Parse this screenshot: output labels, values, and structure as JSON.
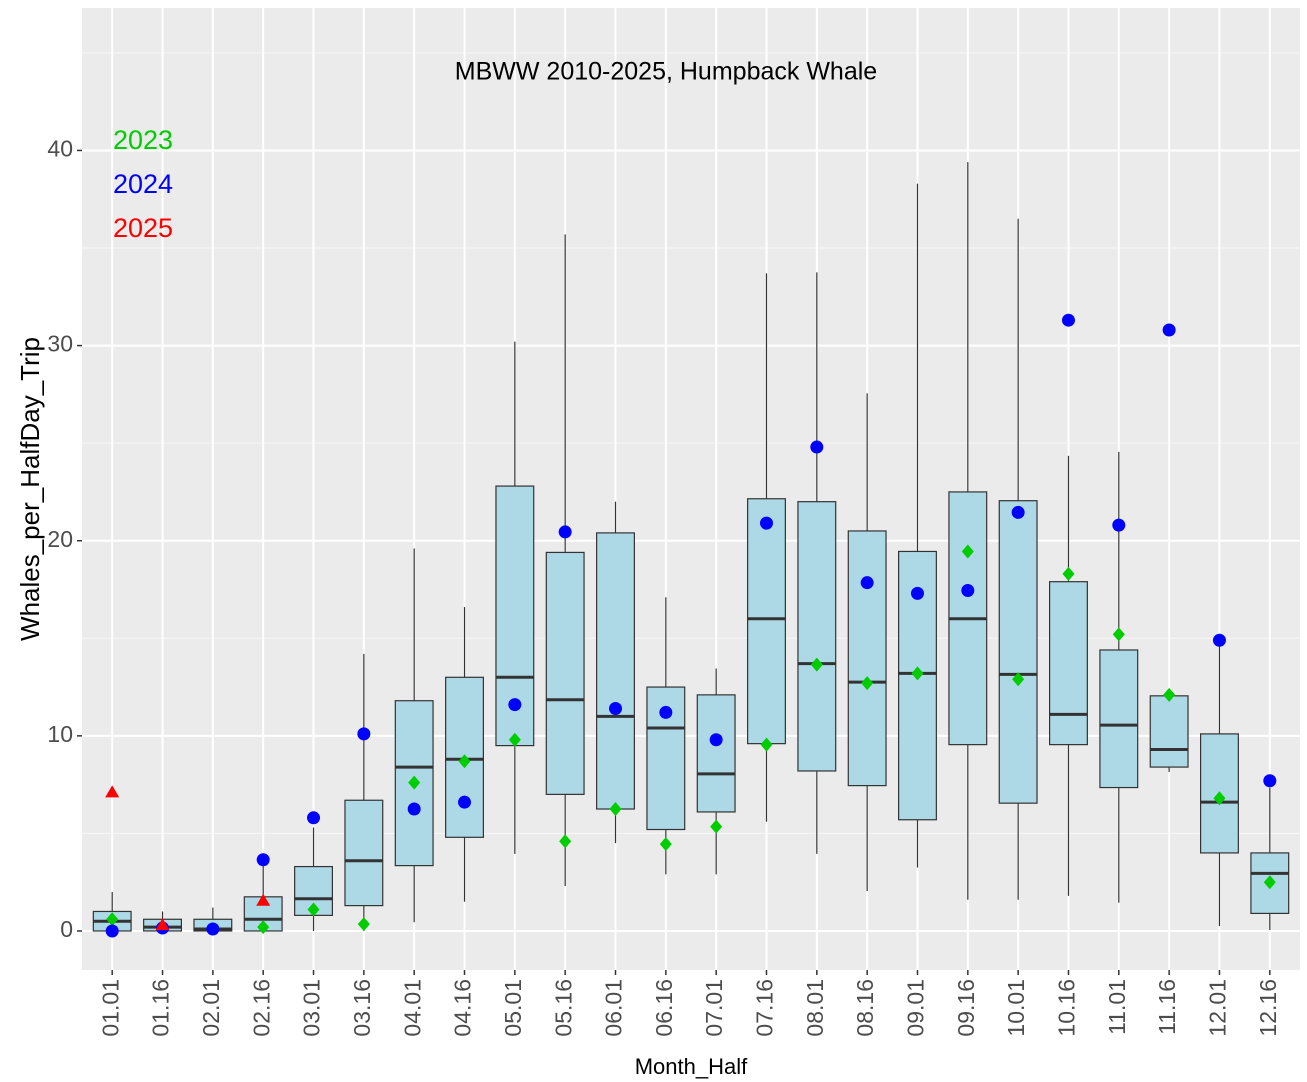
{
  "chart_data": {
    "type": "box",
    "title": "MBWW 2010-2025, Humpback Whale",
    "x_label": "Month_Half",
    "y_label": "Whales_per_HalfDay_Trip",
    "categories": [
      "01.01",
      "01.16",
      "02.01",
      "02.16",
      "03.01",
      "03.16",
      "04.01",
      "04.16",
      "05.01",
      "05.16",
      "06.01",
      "06.16",
      "07.01",
      "07.16",
      "08.01",
      "08.16",
      "09.01",
      "09.16",
      "10.01",
      "10.16",
      "11.01",
      "11.16",
      "12.01",
      "12.16"
    ],
    "box_color": "#add8e6",
    "boxes": {
      "whisker_low": [
        0,
        0,
        0,
        0,
        0,
        0,
        0.45,
        1.5,
        3.95,
        2.3,
        4.5,
        2.9,
        2.9,
        5.6,
        3.95,
        2.05,
        3.25,
        1.6,
        1.6,
        1.8,
        1.45,
        8.15,
        0.25,
        0.05
      ],
      "q1": [
        0,
        0,
        0,
        0,
        0.8,
        1.3,
        3.35,
        4.8,
        9.5,
        7.0,
        6.25,
        5.2,
        6.1,
        9.6,
        8.2,
        7.45,
        5.7,
        9.55,
        6.55,
        9.55,
        7.35,
        8.4,
        4.0,
        0.9
      ],
      "median": [
        0.5,
        0.2,
        0.1,
        0.6,
        1.65,
        3.6,
        8.4,
        8.8,
        13.0,
        11.85,
        11.0,
        10.4,
        8.05,
        16.0,
        13.7,
        12.75,
        13.2,
        16.0,
        13.15,
        11.1,
        10.55,
        9.3,
        6.6,
        2.95
      ],
      "q3": [
        1.0,
        0.6,
        0.6,
        1.75,
        3.3,
        6.7,
        11.8,
        13.0,
        22.8,
        19.4,
        20.4,
        12.5,
        12.1,
        22.15,
        22.0,
        20.5,
        19.45,
        22.5,
        22.05,
        17.9,
        14.4,
        12.05,
        10.1,
        4.0
      ],
      "whisker_high": [
        2.0,
        1.0,
        1.2,
        3.5,
        5.3,
        14.2,
        19.6,
        16.6,
        30.2,
        35.7,
        22.0,
        17.1,
        13.45,
        33.7,
        33.75,
        27.55,
        38.3,
        39.4,
        36.5,
        24.35,
        24.55,
        12.4,
        15.1,
        7.35
      ]
    },
    "series": [
      {
        "name": "2023",
        "color": "#00cd00",
        "marker": "diamond",
        "values": [
          0.6,
          null,
          null,
          0.2,
          1.1,
          0.35,
          7.6,
          8.7,
          9.8,
          4.6,
          6.25,
          4.45,
          5.35,
          9.55,
          13.65,
          12.7,
          13.2,
          19.45,
          12.9,
          18.3,
          15.2,
          12.1,
          6.8,
          2.5
        ]
      },
      {
        "name": "2024",
        "color": "#0000ff",
        "marker": "circle",
        "values": [
          0,
          0.15,
          0.1,
          3.65,
          5.8,
          10.1,
          6.25,
          6.6,
          11.6,
          20.45,
          11.4,
          11.2,
          9.8,
          20.9,
          24.8,
          17.85,
          17.3,
          17.45,
          21.45,
          31.3,
          20.8,
          30.8,
          14.9,
          7.7
        ]
      },
      {
        "name": "2025",
        "color": "#ff0000",
        "marker": "triangle",
        "values": [
          7.1,
          0.3,
          null,
          1.55,
          null,
          null,
          null,
          null,
          null,
          null,
          null,
          null,
          null,
          null,
          null,
          null,
          null,
          null,
          null,
          null,
          null,
          null,
          null,
          null
        ]
      }
    ],
    "ylim": [
      -2,
      47.3
    ],
    "yticks": [
      0,
      10,
      20,
      30,
      40
    ],
    "minor_yticks": [
      5,
      15,
      25,
      35,
      45
    ],
    "grid": true
  }
}
